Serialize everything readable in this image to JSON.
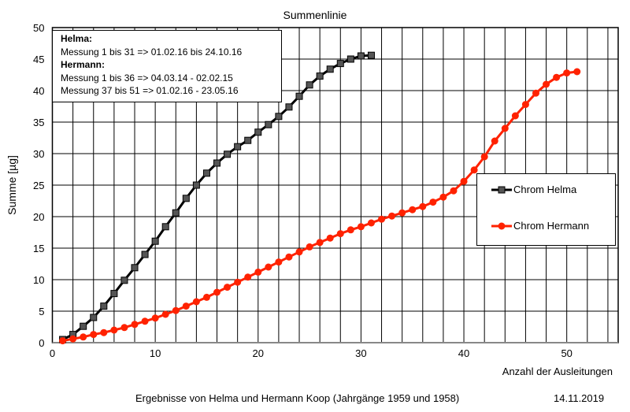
{
  "chart_data": {
    "type": "line",
    "title": "Summenlinie",
    "xlabel": "Anzahl der Ausleitungen",
    "ylabel": "Summe [µg]",
    "xlim": [
      0,
      55
    ],
    "ylim": [
      0,
      50
    ],
    "xticks": [
      0,
      10,
      20,
      30,
      40,
      50
    ],
    "yticks": [
      0,
      5,
      10,
      15,
      20,
      25,
      30,
      35,
      40,
      45,
      50
    ],
    "grid": true,
    "legend_position": "right",
    "series": [
      {
        "name": "Chrom Helma",
        "color": "#000000",
        "marker": "square",
        "x": [
          1,
          2,
          3,
          4,
          5,
          6,
          7,
          8,
          9,
          10,
          11,
          12,
          13,
          14,
          15,
          16,
          17,
          18,
          19,
          20,
          21,
          22,
          23,
          24,
          25,
          26,
          27,
          28,
          29,
          30,
          31
        ],
        "y": [
          0.5,
          1.3,
          2.6,
          4.0,
          5.8,
          7.8,
          9.9,
          11.9,
          14.0,
          16.1,
          18.4,
          20.6,
          22.9,
          25.0,
          26.9,
          28.5,
          29.9,
          31.1,
          32.1,
          33.4,
          34.6,
          35.9,
          37.4,
          39.1,
          40.9,
          42.3,
          43.4,
          44.3,
          45.0,
          45.5,
          45.6
        ]
      },
      {
        "name": "Chrom Hermann",
        "color": "#ff2200",
        "marker": "circle",
        "x": [
          1,
          2,
          3,
          4,
          5,
          6,
          7,
          8,
          9,
          10,
          11,
          12,
          13,
          14,
          15,
          16,
          17,
          18,
          19,
          20,
          21,
          22,
          23,
          24,
          25,
          26,
          27,
          28,
          29,
          30,
          31,
          32,
          33,
          34,
          35,
          36,
          37,
          38,
          39,
          40,
          41,
          42,
          43,
          44,
          45,
          46,
          47,
          48,
          49,
          50,
          51
        ],
        "y": [
          0.3,
          0.6,
          0.9,
          1.3,
          1.6,
          2.0,
          2.4,
          2.9,
          3.4,
          3.9,
          4.5,
          5.1,
          5.8,
          6.5,
          7.2,
          8.0,
          8.8,
          9.6,
          10.4,
          11.2,
          12.0,
          12.8,
          13.6,
          14.4,
          15.2,
          15.9,
          16.6,
          17.3,
          17.9,
          18.4,
          19.0,
          19.6,
          20.1,
          20.6,
          21.1,
          21.6,
          22.3,
          23.1,
          24.1,
          25.6,
          27.4,
          29.5,
          32.0,
          34.0,
          36.0,
          37.8,
          39.6,
          41.0,
          42.1,
          42.8,
          43.0
        ]
      }
    ]
  },
  "annotation": {
    "helma_heading": "Helma:",
    "helma_line": "Messung 1 bis 31 => 01.02.16 bis 24.10.16",
    "hermann_heading": "Hermann:",
    "hermann_line1": "Messung 1 bis 36 => 04.03.14 - 02.02.15",
    "hermann_line2": "Messung 37 bis 51 => 01.02.16 - 23.05.16"
  },
  "footer": {
    "caption": "Ergebnisse von Helma und Hermann Koop (Jahrgänge 1959 und 1958)",
    "date": "14.11.2019"
  }
}
